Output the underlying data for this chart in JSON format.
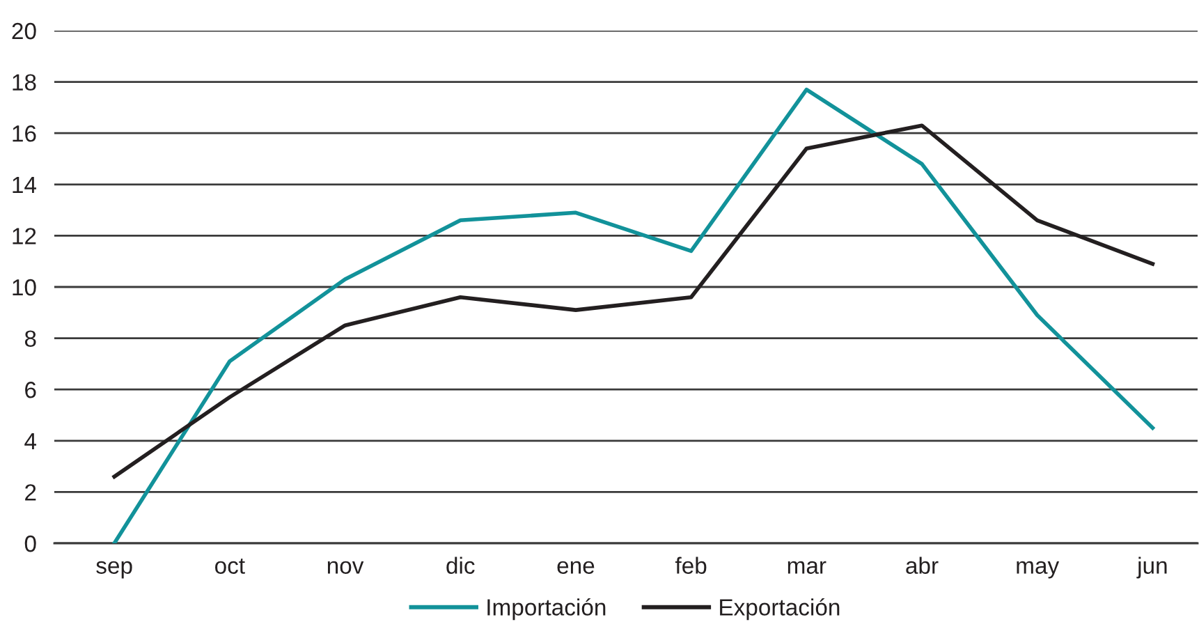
{
  "chart_data": {
    "type": "line",
    "categories": [
      "sep",
      "oct",
      "nov",
      "dic",
      "ene",
      "feb",
      "mar",
      "abr",
      "may",
      "jun"
    ],
    "series": [
      {
        "name": "Importación",
        "color": "#12929a",
        "values": [
          0,
          7.1,
          10.3,
          12.6,
          12.9,
          11.4,
          17.7,
          14.8,
          8.9,
          4.5
        ]
      },
      {
        "name": "Exportación",
        "color": "#231f20",
        "values": [
          2.6,
          5.7,
          8.5,
          9.6,
          9.1,
          9.6,
          15.4,
          16.3,
          12.6,
          10.9
        ]
      }
    ],
    "ylim": [
      0,
      20
    ],
    "yticks": [
      0,
      2,
      4,
      6,
      8,
      10,
      12,
      14,
      16,
      18,
      20
    ],
    "grid": "y",
    "legend": "bottom",
    "marker": "none",
    "line_style": "solid"
  }
}
